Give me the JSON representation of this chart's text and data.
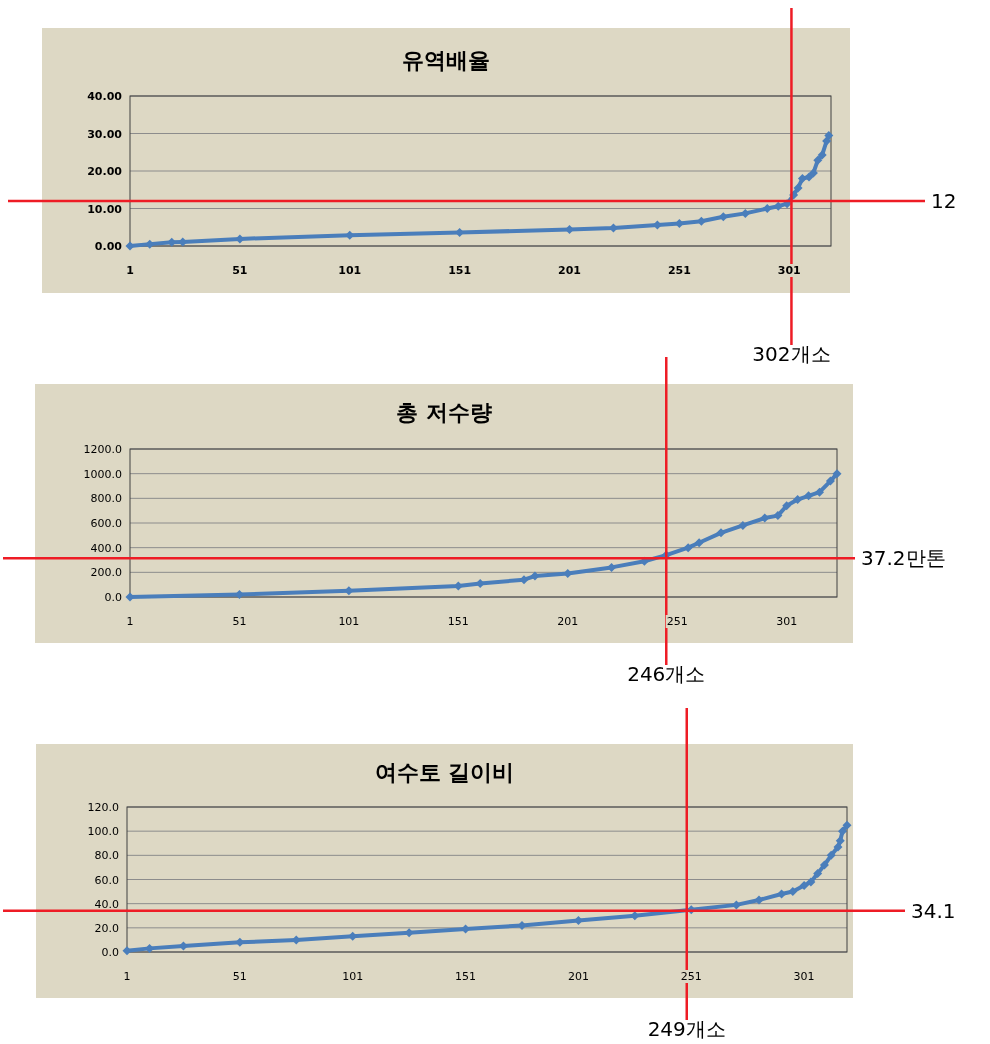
{
  "chart_data": [
    {
      "type": "line",
      "title": "유역배율",
      "marker": "diamond",
      "grid": "y",
      "xlim": [
        1,
        320
      ],
      "xticks": [
        1,
        51,
        101,
        151,
        201,
        251,
        301
      ],
      "ylim": [
        0,
        40
      ],
      "yticks": [
        {
          "value": 0,
          "label": "0.00"
        },
        {
          "value": 10,
          "label": "10.00"
        },
        {
          "value": 20,
          "label": "20.00"
        },
        {
          "value": 30,
          "label": "30.00"
        },
        {
          "value": 40,
          "label": "40.00"
        }
      ],
      "series": [
        {
          "color": "#4a7ebb",
          "x": [
            1,
            10,
            20,
            25,
            51,
            101,
            151,
            201,
            221,
            241,
            251,
            261,
            271,
            281,
            291,
            296,
            300,
            303,
            305,
            307,
            310,
            312,
            314,
            316,
            318,
            319
          ],
          "values": [
            0,
            0.5,
            1.0,
            1.1,
            1.9,
            2.9,
            3.6,
            4.4,
            4.8,
            5.6,
            6.0,
            6.6,
            7.8,
            8.7,
            10.0,
            10.6,
            11.3,
            13.6,
            15.5,
            18.0,
            18.4,
            19.5,
            22.9,
            24.3,
            28.0,
            29.5
          ]
        }
      ],
      "ref_lines": [
        {
          "axis": "x",
          "value": 302,
          "label": "302개소",
          "color": "#ee1c25"
        },
        {
          "axis": "y",
          "value": 12,
          "label": "12",
          "color": "#ee1c25"
        }
      ]
    },
    {
      "type": "line",
      "title": "총 저수량",
      "marker": "diamond",
      "grid": "y",
      "xlim": [
        1,
        324
      ],
      "xticks": [
        1,
        51,
        101,
        151,
        201,
        251,
        301
      ],
      "ylim": [
        0,
        1200
      ],
      "yticks": [
        {
          "value": 0,
          "label": "0.0"
        },
        {
          "value": 200,
          "label": "200.0"
        },
        {
          "value": 400,
          "label": "400.0"
        },
        {
          "value": 600,
          "label": "600.0"
        },
        {
          "value": 800,
          "label": "800.0"
        },
        {
          "value": 1000,
          "label": "1000.0"
        },
        {
          "value": 1200,
          "label": "1200.0"
        }
      ],
      "series": [
        {
          "color": "#4a7ebb",
          "x": [
            1,
            51,
            101,
            151,
            161,
            181,
            186,
            201,
            221,
            236,
            246,
            256,
            261,
            271,
            281,
            291,
            297,
            301,
            306,
            311,
            316,
            321,
            324
          ],
          "values": [
            0,
            20,
            50,
            90,
            110,
            140,
            170,
            190,
            240,
            290,
            340,
            400,
            440,
            520,
            580,
            640,
            660,
            740,
            790,
            820,
            850,
            940,
            1000
          ]
        }
      ],
      "ref_lines": [
        {
          "axis": "x",
          "value": 246,
          "label": "246개소",
          "color": "#ee1c25"
        },
        {
          "axis": "y",
          "value": 315,
          "label": "37.2만톤",
          "color": "#ee1c25"
        }
      ]
    },
    {
      "type": "line",
      "title": "여수토 길이비",
      "marker": "diamond",
      "grid": "y",
      "xlim": [
        1,
        320
      ],
      "xticks": [
        1,
        51,
        101,
        151,
        201,
        251,
        301
      ],
      "ylim": [
        0,
        120
      ],
      "yticks": [
        {
          "value": 0,
          "label": "0.0"
        },
        {
          "value": 20,
          "label": "20.0"
        },
        {
          "value": 40,
          "label": "40.0"
        },
        {
          "value": 60,
          "label": "60.0"
        },
        {
          "value": 80,
          "label": "80.0"
        },
        {
          "value": 100,
          "label": "100.0"
        },
        {
          "value": 120,
          "label": "120.0"
        }
      ],
      "series": [
        {
          "color": "#4a7ebb",
          "x": [
            1,
            11,
            26,
            51,
            76,
            101,
            126,
            151,
            176,
            201,
            226,
            251,
            271,
            281,
            291,
            296,
            301,
            304,
            307,
            310,
            313,
            316,
            317,
            318,
            320
          ],
          "values": [
            1,
            3,
            5,
            8,
            10,
            13,
            16,
            19,
            22,
            26,
            30,
            35,
            39,
            43,
            48,
            50,
            55,
            58,
            65,
            72,
            80,
            87,
            92,
            100,
            105
          ]
        }
      ],
      "ref_lines": [
        {
          "axis": "x",
          "value": 249,
          "label": "249개소",
          "color": "#ee1c25"
        },
        {
          "axis": "y",
          "value": 34.1,
          "label": "34.1",
          "color": "#ee1c25"
        }
      ]
    }
  ]
}
